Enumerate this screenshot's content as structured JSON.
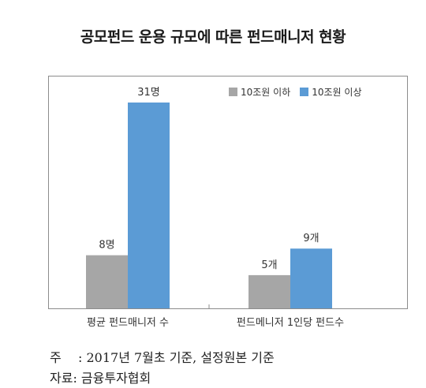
{
  "chart_data": {
    "type": "bar",
    "title": "공모펀드 운용 규모에 따른 펀드매니저 현황",
    "categories": [
      "평균 펀드매니저 수",
      "펀드메니저 1인당 펀드수"
    ],
    "series": [
      {
        "name": "10조원 이하",
        "values": [
          8,
          5
        ],
        "labels": [
          "8명",
          "5개"
        ],
        "color": "#a6a6a6"
      },
      {
        "name": "10조원 이상",
        "values": [
          31,
          9
        ],
        "labels": [
          "31명",
          "9개"
        ],
        "color": "#5b9bd5"
      }
    ],
    "ylim": [
      0,
      35
    ],
    "grid": false,
    "legend_position": "top-right"
  },
  "notes": {
    "note_label": "주",
    "note_text": ": 2017년 7월초 기준, 설정원본 기준",
    "source_text": "자료: 금융투자협회"
  }
}
